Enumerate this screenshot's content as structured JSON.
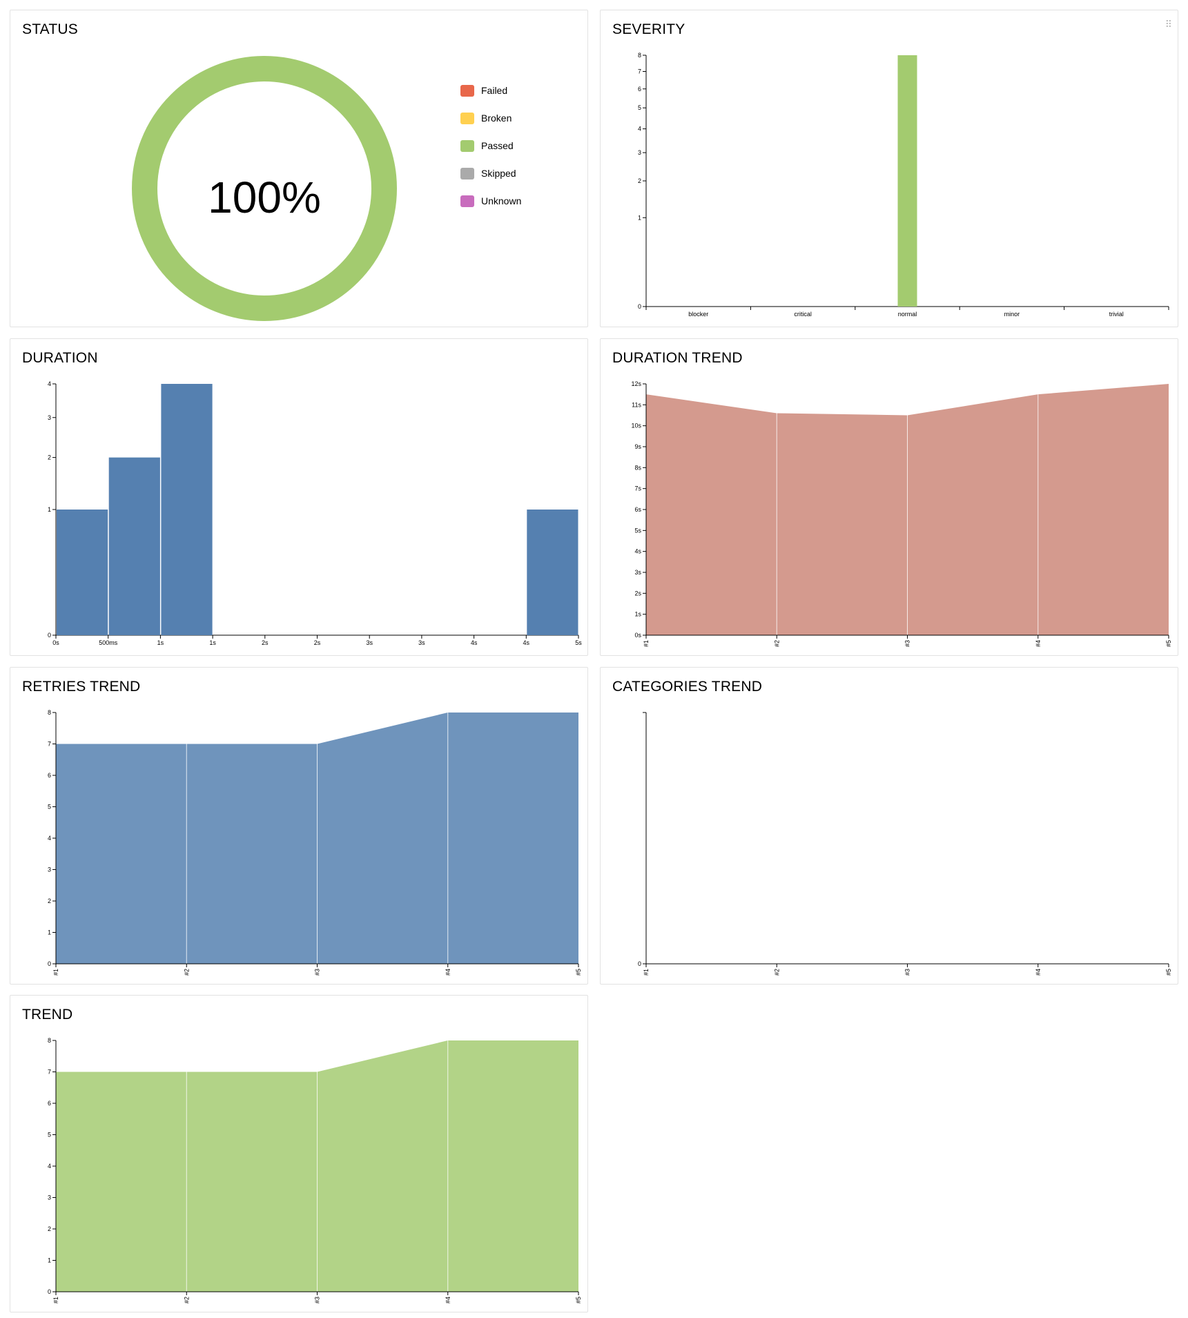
{
  "widgets": {
    "status": {
      "title": "STATUS",
      "percent_label": "100%",
      "legend": [
        {
          "label": "Failed",
          "color": "#e8674a"
        },
        {
          "label": "Broken",
          "color": "#ffd050"
        },
        {
          "label": "Passed",
          "color": "#a3cb6f"
        },
        {
          "label": "Skipped",
          "color": "#aaaaaa"
        },
        {
          "label": "Unknown",
          "color": "#c86cbd"
        }
      ]
    },
    "severity": {
      "title": "SEVERITY",
      "drag_icon": "drag-handle-icon"
    },
    "duration": {
      "title": "DURATION"
    },
    "duration_trend": {
      "title": "DURATION TREND"
    },
    "retries_trend": {
      "title": "RETRIES TREND"
    },
    "categories_trend": {
      "title": "CATEGORIES TREND"
    },
    "trend": {
      "title": "TREND"
    }
  },
  "chart_data": [
    {
      "id": "status",
      "type": "pie",
      "slices": [
        {
          "label": "Failed",
          "value": 0
        },
        {
          "label": "Broken",
          "value": 0
        },
        {
          "label": "Passed",
          "value": 8
        },
        {
          "label": "Skipped",
          "value": 0
        },
        {
          "label": "Unknown",
          "value": 0
        }
      ],
      "colors": [
        "#e8674a",
        "#ffd050",
        "#a3cb6f",
        "#aaaaaa",
        "#c86cbd"
      ]
    },
    {
      "id": "severity",
      "type": "bar",
      "categories": [
        "blocker",
        "critical",
        "normal",
        "minor",
        "trivial"
      ],
      "values": [
        0,
        0,
        8,
        0,
        0
      ],
      "yticks": [
        "0",
        "1",
        "2",
        "3",
        "4",
        "5",
        "6",
        "7",
        "8"
      ],
      "ylim": [
        0,
        8
      ],
      "scale": "sqrt",
      "color": "#a3cb6f"
    },
    {
      "id": "duration",
      "type": "bar",
      "xticks": [
        "0s",
        "500ms",
        "1s",
        "1s",
        "2s",
        "2s",
        "3s",
        "3s",
        "4s",
        "4s",
        "5s"
      ],
      "bins": [
        {
          "from": 0,
          "to": 1,
          "value": 1
        },
        {
          "from": 1,
          "to": 2,
          "value": 2
        },
        {
          "from": 2,
          "to": 3,
          "value": 4
        },
        {
          "from": 9,
          "to": 10,
          "value": 1
        }
      ],
      "yticks": [
        "0",
        "1",
        "2",
        "3",
        "4"
      ],
      "ylim": [
        0,
        4
      ],
      "scale": "sqrt",
      "color": "#5580b0"
    },
    {
      "id": "duration_trend",
      "type": "area",
      "x": [
        "#1",
        "#2",
        "#3",
        "#4",
        "#5"
      ],
      "values": [
        11.5,
        10.6,
        10.5,
        11.5,
        12
      ],
      "yticks": [
        "0s",
        "1s",
        "2s",
        "3s",
        "4s",
        "5s",
        "6s",
        "7s",
        "8s",
        "9s",
        "10s",
        "11s",
        "12s"
      ],
      "ylim": [
        0,
        12
      ],
      "color": "#d49a8e"
    },
    {
      "id": "retries_trend",
      "type": "area",
      "x": [
        "#1",
        "#2",
        "#3",
        "#4",
        "#5"
      ],
      "values": [
        7,
        7,
        7,
        8,
        8
      ],
      "yticks": [
        "0",
        "1",
        "2",
        "3",
        "4",
        "5",
        "6",
        "7",
        "8"
      ],
      "ylim": [
        0,
        8
      ],
      "color": "#6f94bc"
    },
    {
      "id": "categories_trend",
      "type": "area",
      "x": [
        "#1",
        "#2",
        "#3",
        "#4",
        "#5"
      ],
      "values": [
        0,
        0,
        0,
        0,
        0
      ],
      "yticks": [
        "0"
      ],
      "ylim": [
        0,
        1
      ],
      "color": "#6f94bc"
    },
    {
      "id": "trend",
      "type": "area",
      "x": [
        "#1",
        "#2",
        "#3",
        "#4",
        "#5"
      ],
      "values": [
        7,
        7,
        7,
        8,
        8
      ],
      "yticks": [
        "0",
        "1",
        "2",
        "3",
        "4",
        "5",
        "6",
        "7",
        "8"
      ],
      "ylim": [
        0,
        8
      ],
      "color": "#b2d387"
    }
  ]
}
